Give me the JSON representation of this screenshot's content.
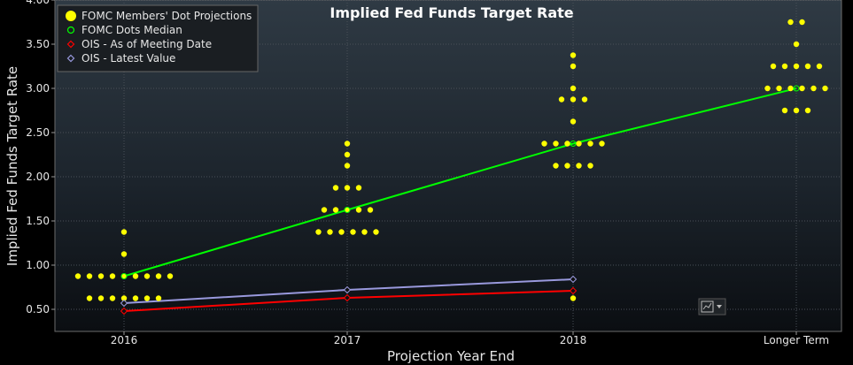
{
  "chart_data": {
    "type": "scatter",
    "title": "Implied Fed Funds Target Rate",
    "xlabel": "Projection Year End",
    "ylabel": "Implied Fed Funds Target Rate",
    "categories": [
      "2016",
      "2017",
      "2018",
      "Longer Term"
    ],
    "ylim": [
      0.25,
      4.0
    ],
    "yticks": [
      "0.50",
      "1.00",
      "1.50",
      "2.00",
      "2.50",
      "3.00",
      "3.50",
      "4.00"
    ],
    "grid": true,
    "legend_position": "top-left",
    "legend": [
      {
        "label": "FOMC Members' Dot Projections",
        "color": "#ffff00",
        "marker": "filled-circle"
      },
      {
        "label": "FOMC Dots Median",
        "color": "#00ff00",
        "marker": "hollow-circle"
      },
      {
        "label": "OIS - As of Meeting Date",
        "color": "#ff0000",
        "marker": "diamond"
      },
      {
        "label": "OIS - Latest Value",
        "color": "#9999dd",
        "marker": "diamond"
      }
    ],
    "dots": [
      {
        "category": "2016",
        "value": 1.375,
        "count": 1
      },
      {
        "category": "2016",
        "value": 1.125,
        "count": 1
      },
      {
        "category": "2016",
        "value": 0.875,
        "count": 9
      },
      {
        "category": "2016",
        "value": 0.625,
        "count": 7
      },
      {
        "category": "2017",
        "value": 2.375,
        "count": 1
      },
      {
        "category": "2017",
        "value": 2.25,
        "count": 1
      },
      {
        "category": "2017",
        "value": 2.125,
        "count": 1
      },
      {
        "category": "2017",
        "value": 1.875,
        "count": 3
      },
      {
        "category": "2017",
        "value": 1.625,
        "count": 5
      },
      {
        "category": "2017",
        "value": 1.375,
        "count": 6
      },
      {
        "category": "2018",
        "value": 3.375,
        "count": 1
      },
      {
        "category": "2018",
        "value": 3.25,
        "count": 1
      },
      {
        "category": "2018",
        "value": 3.0,
        "count": 1
      },
      {
        "category": "2018",
        "value": 2.875,
        "count": 3
      },
      {
        "category": "2018",
        "value": 2.625,
        "count": 1
      },
      {
        "category": "2018",
        "value": 2.375,
        "count": 6
      },
      {
        "category": "2018",
        "value": 2.125,
        "count": 4
      },
      {
        "category": "2018",
        "value": 0.625,
        "count": 1
      },
      {
        "category": "Longer Term",
        "value": 3.75,
        "count": 2
      },
      {
        "category": "Longer Term",
        "value": 3.5,
        "count": 1
      },
      {
        "category": "Longer Term",
        "value": 3.25,
        "count": 5
      },
      {
        "category": "Longer Term",
        "value": 3.0,
        "count": 6
      },
      {
        "category": "Longer Term",
        "value": 2.75,
        "count": 3
      }
    ],
    "series": [
      {
        "name": "FOMC Dots Median",
        "color": "#00ff00",
        "categories": [
          "2016",
          "2017",
          "2018",
          "Longer Term"
        ],
        "values": [
          0.875,
          1.625,
          2.375,
          3.0
        ]
      },
      {
        "name": "OIS - As of Meeting Date",
        "color": "#ff0000",
        "categories": [
          "2016",
          "2017",
          "2018"
        ],
        "values": [
          0.48,
          0.63,
          0.71
        ]
      },
      {
        "name": "OIS - Latest Value",
        "color": "#9999dd",
        "categories": [
          "2016",
          "2017",
          "2018"
        ],
        "values": [
          0.57,
          0.72,
          0.84
        ]
      }
    ]
  },
  "toolbar": {
    "chart_menu_icon": "line-chart-icon"
  }
}
